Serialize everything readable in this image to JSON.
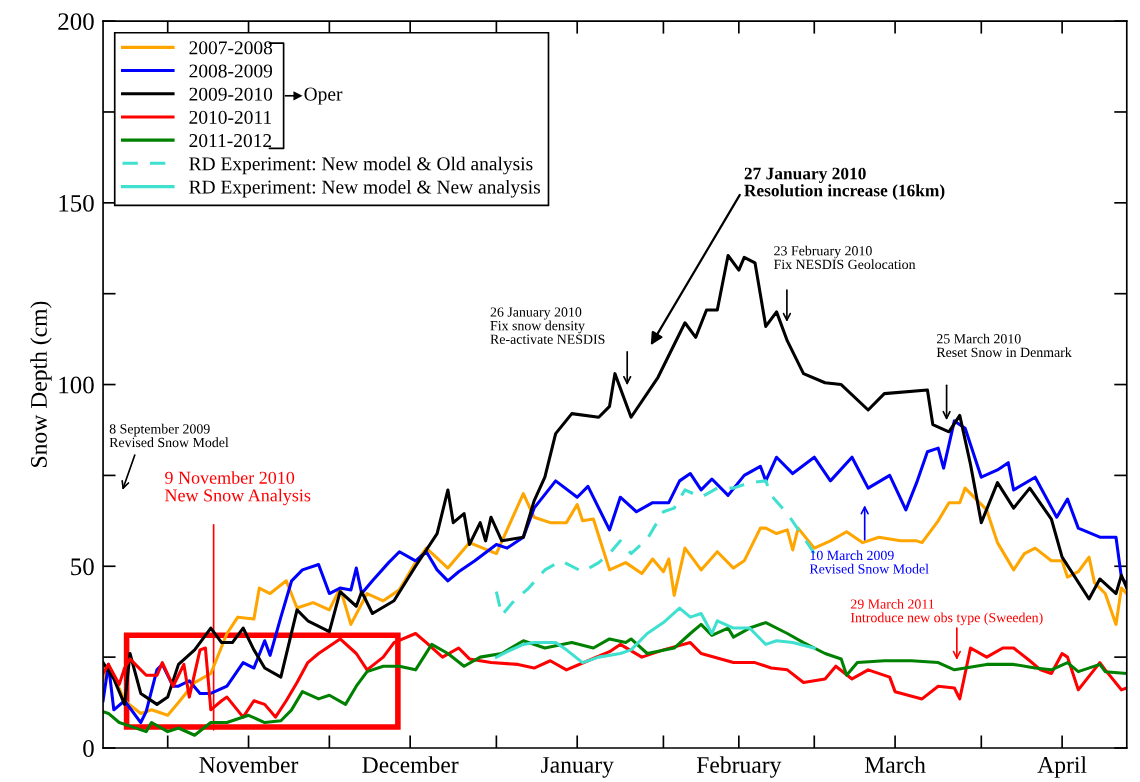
{
  "chart_data": {
    "type": "line",
    "ylabel": "Snow Depth (cm)",
    "xlim": [
      "2009-10-20",
      "2010-04-28"
    ],
    "xticks": [
      {
        "value": "2009-11-01",
        "label": null
      },
      {
        "value": "2009-11-16",
        "label": "November"
      },
      {
        "value": "2009-12-01",
        "label": null
      },
      {
        "value": "2009-12-16",
        "label": "December"
      },
      {
        "value": "2010-01-01",
        "label": null
      },
      {
        "value": "2010-01-16",
        "label": "January"
      },
      {
        "value": "2010-02-01",
        "label": null
      },
      {
        "value": "2010-02-15",
        "label": "February"
      },
      {
        "value": "2010-03-01",
        "label": null
      },
      {
        "value": "2010-03-16",
        "label": "March"
      },
      {
        "value": "2010-04-01",
        "label": null
      },
      {
        "value": "2010-04-16",
        "label": "April"
      }
    ],
    "ylim": [
      0,
      200
    ],
    "yticks": [
      0,
      {
        "value": 25,
        "label": null
      },
      50,
      {
        "value": 75,
        "label": null
      },
      100,
      {
        "value": 125,
        "label": null
      },
      150,
      {
        "value": 175,
        "label": null
      },
      200
    ],
    "grid": false,
    "legend": "top left",
    "marker": "none",
    "series": [
      {
        "name": "2007-2008",
        "color": "#ffa500",
        "line_style": "solid",
        "x": [
          "2009-10-20",
          "2009-10-21",
          "2009-10-24",
          "2009-10-27",
          "2009-10-29",
          "2009-11-01",
          "2009-11-03",
          "2009-11-06",
          "2009-11-09",
          "2009-11-12",
          "2009-11-14",
          "2009-11-17",
          "2009-11-18",
          "2009-11-20",
          "2009-11-23",
          "2009-11-25",
          "2009-11-28",
          "2009-12-01",
          "2009-12-03",
          "2009-12-05",
          "2009-12-08",
          "2009-12-11",
          "2009-12-14",
          "2009-12-17",
          "2009-12-19",
          "2009-12-23",
          "2009-12-27",
          "2010-01-01",
          "2010-01-06",
          "2010-01-08",
          "2010-01-11",
          "2010-01-14",
          "2010-01-16",
          "2010-01-17",
          "2010-01-19",
          "2010-01-22",
          "2010-01-25",
          "2010-01-28",
          "2010-01-30",
          "2010-02-01",
          "2010-02-02",
          "2010-02-03",
          "2010-02-05",
          "2010-02-08",
          "2010-02-11",
          "2010-02-14",
          "2010-02-16",
          "2010-02-19",
          "2010-02-20",
          "2010-02-22",
          "2010-02-24",
          "2010-02-25",
          "2010-02-26",
          "2010-03-01",
          "2010-03-04",
          "2010-03-07",
          "2010-03-10",
          "2010-03-13",
          "2010-03-17",
          "2010-03-20",
          "2010-03-21",
          "2010-03-24",
          "2010-03-26",
          "2010-03-28",
          "2010-03-29",
          "2010-04-02",
          "2010-04-04",
          "2010-04-07",
          "2010-04-09",
          "2010-04-11",
          "2010-04-14",
          "2010-04-16",
          "2010-04-17",
          "2010-04-19",
          "2010-04-21",
          "2010-04-22",
          "2010-04-24",
          "2010-04-26",
          "2010-04-27",
          "2010-04-28"
        ],
        "values": [
          18.5,
          23,
          13,
          9.5,
          10.5,
          9,
          12.5,
          18,
          20.5,
          31.5,
          36,
          35.5,
          44,
          42.5,
          46,
          38.5,
          40,
          38,
          44,
          34,
          42.5,
          40.5,
          43.5,
          51,
          55,
          49.5,
          56.5,
          53.5,
          70,
          63.5,
          62,
          62,
          67,
          62.5,
          63,
          49,
          51,
          48,
          52,
          48.5,
          52,
          42,
          55,
          49,
          54,
          49.5,
          51.5,
          60.5,
          60.5,
          59,
          60,
          54.5,
          60.5,
          55,
          57,
          59.5,
          56.5,
          58,
          57,
          57,
          56.5,
          62.5,
          67.5,
          67.5,
          71.5,
          65.5,
          56.5,
          49,
          53.5,
          55,
          51.5,
          51.5,
          47,
          48.5,
          52.5,
          45.5,
          42.5,
          34,
          44,
          42.5
        ]
      },
      {
        "name": "2008-2009",
        "color": "#0000ff",
        "line_style": "solid",
        "x": [
          "2009-10-20",
          "2009-10-21",
          "2009-10-22",
          "2009-10-24",
          "2009-10-27",
          "2009-10-28",
          "2009-10-30",
          "2009-10-31",
          "2009-11-02",
          "2009-11-03",
          "2009-11-05",
          "2009-11-07",
          "2009-11-09",
          "2009-11-12",
          "2009-11-15",
          "2009-11-17",
          "2009-11-19",
          "2009-11-20",
          "2009-11-22",
          "2009-11-24",
          "2009-11-26",
          "2009-11-29",
          "2009-12-01",
          "2009-12-03",
          "2009-12-05",
          "2009-12-06",
          "2009-12-07",
          "2009-12-09",
          "2009-12-12",
          "2009-12-14",
          "2009-12-17",
          "2009-12-19",
          "2009-12-21",
          "2009-12-23",
          "2009-12-25",
          "2009-12-28",
          "2010-01-01",
          "2010-01-03",
          "2010-01-06",
          "2010-01-08",
          "2010-01-12",
          "2010-01-16",
          "2010-01-18",
          "2010-01-22",
          "2010-01-24",
          "2010-01-27",
          "2010-01-30",
          "2010-02-02",
          "2010-02-04",
          "2010-02-06",
          "2010-02-08",
          "2010-02-10",
          "2010-02-13",
          "2010-02-16",
          "2010-02-19",
          "2010-02-20",
          "2010-02-22",
          "2010-02-25",
          "2010-03-01",
          "2010-03-04",
          "2010-03-08",
          "2010-03-11",
          "2010-03-15",
          "2010-03-18",
          "2010-03-20",
          "2010-03-22",
          "2010-03-24",
          "2010-03-25",
          "2010-03-27",
          "2010-03-29",
          "2010-04-01",
          "2010-04-04",
          "2010-04-06",
          "2010-04-07",
          "2010-04-11",
          "2010-04-15",
          "2010-04-17",
          "2010-04-19",
          "2010-04-23",
          "2010-04-26",
          "2010-04-27",
          "2010-04-28"
        ],
        "values": [
          13,
          23,
          10.5,
          13,
          7,
          10,
          21.5,
          23,
          17,
          17,
          18.5,
          15,
          15,
          17,
          23.5,
          22,
          29.5,
          25.5,
          36,
          46,
          49,
          50.5,
          42.5,
          44,
          43.5,
          49.5,
          42.5,
          46,
          51,
          54,
          51.5,
          54,
          49,
          46,
          48.5,
          51.5,
          56,
          55,
          58,
          66,
          73.5,
          69,
          72,
          60,
          69,
          65,
          67.5,
          67.5,
          73.5,
          75.5,
          71,
          74,
          69.5,
          75,
          77.5,
          73.5,
          80,
          75.5,
          80,
          73.5,
          80,
          71.5,
          75,
          65.5,
          73,
          81.5,
          82.5,
          77,
          90,
          88,
          74.5,
          76.5,
          78.5,
          71,
          74.5,
          63.5,
          68.5,
          60.5,
          58,
          58,
          47,
          45
        ]
      },
      {
        "name": "2009-2010",
        "color": "#000000",
        "line_style": "solid",
        "x": [
          "2009-10-20",
          "2009-10-22",
          "2009-10-24",
          "2009-10-25",
          "2009-10-27",
          "2009-10-30",
          "2009-11-01",
          "2009-11-03",
          "2009-11-06",
          "2009-11-09",
          "2009-11-11",
          "2009-11-13",
          "2009-11-15",
          "2009-11-17",
          "2009-11-19",
          "2009-11-22",
          "2009-11-25",
          "2009-11-27",
          "2009-12-01",
          "2009-12-03",
          "2009-12-06",
          "2009-12-07",
          "2009-12-09",
          "2009-12-13",
          "2009-12-17",
          "2009-12-21",
          "2009-12-23",
          "2009-12-24",
          "2009-12-26",
          "2009-12-27",
          "2009-12-29",
          "2009-12-30",
          "2009-12-31",
          "2010-01-02",
          "2010-01-06",
          "2010-01-08",
          "2010-01-10",
          "2010-01-12",
          "2010-01-15",
          "2010-01-20",
          "2010-01-22",
          "2010-01-23",
          "2010-01-26",
          "2010-01-31",
          "2010-02-05",
          "2010-02-07",
          "2010-02-09",
          "2010-02-11",
          "2010-02-13",
          "2010-02-15",
          "2010-02-16",
          "2010-02-18",
          "2010-02-20",
          "2010-02-22",
          "2010-02-24",
          "2010-02-27",
          "2010-03-03",
          "2010-03-06",
          "2010-03-11",
          "2010-03-14",
          "2010-03-22",
          "2010-03-23",
          "2010-03-26",
          "2010-03-28",
          "2010-03-30",
          "2010-04-01",
          "2010-04-04",
          "2010-04-07",
          "2010-04-10",
          "2010-04-14",
          "2010-04-16",
          "2010-04-21",
          "2010-04-23",
          "2010-04-26",
          "2010-04-27",
          "2010-04-28"
        ],
        "values": [
          23.5,
          19,
          12,
          26,
          15,
          12,
          14,
          23,
          27,
          33,
          29,
          29,
          33,
          27,
          22,
          19.5,
          38,
          35,
          32,
          43,
          39,
          43,
          37,
          40.5,
          50,
          59,
          71,
          62,
          64.5,
          56,
          62,
          57,
          63.5,
          57,
          58,
          68,
          74.5,
          86.5,
          92,
          91,
          94,
          103,
          91,
          102,
          117,
          113,
          120.5,
          120.5,
          135.5,
          131.5,
          135,
          133.5,
          116,
          120,
          112,
          103,
          100.5,
          100,
          93,
          97.5,
          98.5,
          89,
          87,
          91.5,
          78,
          62,
          73,
          66,
          71.5,
          63,
          52.5,
          41,
          46.5,
          42.5,
          47.5,
          44
        ]
      },
      {
        "name": "2010-2011",
        "color": "#ff0000",
        "line_style": "solid",
        "x": [
          "2009-10-20",
          "2009-10-21",
          "2009-10-23",
          "2009-10-24",
          "2009-10-25",
          "2009-10-28",
          "2009-10-30",
          "2009-10-31",
          "2009-11-02",
          "2009-11-04",
          "2009-11-05",
          "2009-11-07",
          "2009-11-08",
          "2009-11-09",
          "2009-11-11",
          "2009-11-12",
          "2009-11-15",
          "2009-11-17",
          "2009-11-19",
          "2009-11-21",
          "2009-11-23",
          "2009-11-25",
          "2009-11-27",
          "2009-11-29",
          "2009-12-03",
          "2009-12-06",
          "2009-12-08",
          "2009-12-11",
          "2009-12-13",
          "2009-12-17",
          "2009-12-19",
          "2009-12-22",
          "2009-12-25",
          "2009-12-27",
          "2009-12-31",
          "2010-01-05",
          "2010-01-08",
          "2010-01-11",
          "2010-01-14",
          "2010-01-18",
          "2010-01-22",
          "2010-01-24",
          "2010-01-28",
          "2010-02-01",
          "2010-02-06",
          "2010-02-08",
          "2010-02-14",
          "2010-02-18",
          "2010-02-21",
          "2010-02-24",
          "2010-02-27",
          "2010-03-03",
          "2010-03-05",
          "2010-03-08",
          "2010-03-11",
          "2010-03-15",
          "2010-03-16",
          "2010-03-21",
          "2010-03-24",
          "2010-03-27",
          "2010-03-28",
          "2010-03-30",
          "2010-04-02",
          "2010-04-05",
          "2010-04-07",
          "2010-04-10",
          "2010-04-12",
          "2010-04-14",
          "2010-04-16",
          "2010-04-17",
          "2010-04-19",
          "2010-04-23",
          "2010-04-24",
          "2010-04-27",
          "2010-04-28"
        ],
        "values": [
          20.5,
          23,
          17.5,
          22,
          24.5,
          20,
          20,
          23.5,
          17,
          23,
          14,
          27,
          27.5,
          10.5,
          13,
          14,
          8.5,
          13,
          12,
          8.5,
          13,
          18,
          23.5,
          26,
          30,
          26,
          21.5,
          25,
          29,
          31.5,
          29,
          25,
          27.5,
          24.5,
          23.5,
          23,
          22,
          24,
          21.5,
          24,
          26.5,
          28.5,
          25,
          27,
          29,
          26,
          23.5,
          23.5,
          22,
          21.5,
          18,
          19,
          22.5,
          19,
          21.5,
          19.5,
          15.5,
          13.5,
          17,
          16.5,
          13.5,
          27.5,
          25,
          27.5,
          27.5,
          24,
          21.5,
          20.5,
          26,
          25,
          16,
          23.5,
          21.5,
          16,
          16.5
        ]
      },
      {
        "name": "2011-2012",
        "color": "#008000",
        "line_style": "solid",
        "x": [
          "2009-10-20",
          "2009-10-21",
          "2009-10-23",
          "2009-10-25",
          "2009-10-28",
          "2009-10-29",
          "2009-11-01",
          "2009-11-03",
          "2009-11-06",
          "2009-11-09",
          "2009-11-12",
          "2009-11-16",
          "2009-11-19",
          "2009-11-22",
          "2009-11-24",
          "2009-11-26",
          "2009-11-29",
          "2009-12-01",
          "2009-12-04",
          "2009-12-06",
          "2009-12-08",
          "2009-12-11",
          "2009-12-14",
          "2009-12-17",
          "2009-12-20",
          "2009-12-23",
          "2009-12-26",
          "2009-12-29",
          "2010-01-02",
          "2010-01-06",
          "2010-01-10",
          "2010-01-15",
          "2010-01-19",
          "2010-01-22",
          "2010-01-25",
          "2010-01-26",
          "2010-01-29",
          "2010-02-03",
          "2010-02-06",
          "2010-02-08",
          "2010-02-10",
          "2010-02-13",
          "2010-02-14",
          "2010-02-17",
          "2010-02-20",
          "2010-02-24",
          "2010-02-27",
          "2010-03-03",
          "2010-03-06",
          "2010-03-07",
          "2010-03-09",
          "2010-03-14",
          "2010-03-19",
          "2010-03-24",
          "2010-03-27",
          "2010-04-02",
          "2010-04-07",
          "2010-04-11",
          "2010-04-14",
          "2010-04-17",
          "2010-04-19",
          "2010-04-23",
          "2010-04-24",
          "2010-04-28"
        ],
        "values": [
          10,
          9.5,
          7,
          6,
          4.5,
          7,
          4.5,
          5.5,
          3.5,
          7,
          7,
          9,
          7,
          7.5,
          10.5,
          15.5,
          13.5,
          14.5,
          12,
          17,
          21,
          22.5,
          22.5,
          21.5,
          28.5,
          26,
          22.5,
          25,
          26,
          29.5,
          27.5,
          29,
          27.5,
          30,
          29,
          30,
          26,
          27.5,
          31.5,
          34,
          31,
          33,
          30.5,
          33,
          34.5,
          31.5,
          29,
          26,
          24.5,
          20,
          23.5,
          24,
          24,
          23.5,
          21.5,
          23,
          23,
          22,
          21.5,
          23.5,
          21,
          23,
          21,
          20.5
        ]
      },
      {
        "name": "RD Experiment: New model & Old analysis",
        "color": "#40e0d0",
        "line_style": "dashed",
        "x": [
          "2010-01-01",
          "2010-01-02",
          "2010-01-04",
          "2010-01-07",
          "2010-01-10",
          "2010-01-13",
          "2010-01-17",
          "2010-01-20",
          "2010-01-22",
          "2010-01-24",
          "2010-01-26",
          "2010-01-29",
          "2010-02-01",
          "2010-02-03",
          "2010-02-05",
          "2010-02-08",
          "2010-02-11",
          "2010-02-14",
          "2010-02-17",
          "2010-02-20",
          "2010-02-21",
          "2010-02-24",
          "2010-02-27",
          "2010-03-01"
        ],
        "values": [
          43,
          36.5,
          40,
          44,
          49,
          51.5,
          48.5,
          51,
          53.5,
          57,
          53.5,
          57.5,
          65,
          66,
          71,
          69,
          71.5,
          71.5,
          73,
          73.5,
          69.5,
          64.5,
          58,
          53.5
        ]
      },
      {
        "name": "RD Experiment: New model & New analysis",
        "color": "#40e0d0",
        "line_style": "solid",
        "x": [
          "2010-01-01",
          "2010-01-03",
          "2010-01-06",
          "2010-01-08",
          "2010-01-12",
          "2010-01-14",
          "2010-01-17",
          "2010-01-20",
          "2010-01-24",
          "2010-01-26",
          "2010-01-29",
          "2010-02-01",
          "2010-02-04",
          "2010-02-06",
          "2010-02-08",
          "2010-02-10",
          "2010-02-11",
          "2010-02-14",
          "2010-02-17",
          "2010-02-20",
          "2010-02-22",
          "2010-02-25",
          "2010-03-01"
        ],
        "values": [
          25,
          26.5,
          28.5,
          29,
          29,
          27,
          23.5,
          25,
          26,
          27,
          31.5,
          34.5,
          38.5,
          36,
          37,
          31.5,
          35,
          33,
          33,
          28.5,
          29.5,
          29,
          27.5
        ]
      }
    ],
    "annotations": [
      "8 September 2009\nRevised Snow Model",
      "9 November 2010\nNew Snow Analysis",
      "26 January 2010\nFix snow density\nRe-activate NESDIS",
      "27 January 2010\nResolution increase (16km)",
      "23 February 2010\nFix NESDIS Geolocation",
      "25 March 2010\nReset Snow in Denmark",
      "10 March 2009\nRevised Snow Model",
      "29 March 2011\nIntroduce new obs type (Sweeden)",
      "Oper"
    ]
  }
}
